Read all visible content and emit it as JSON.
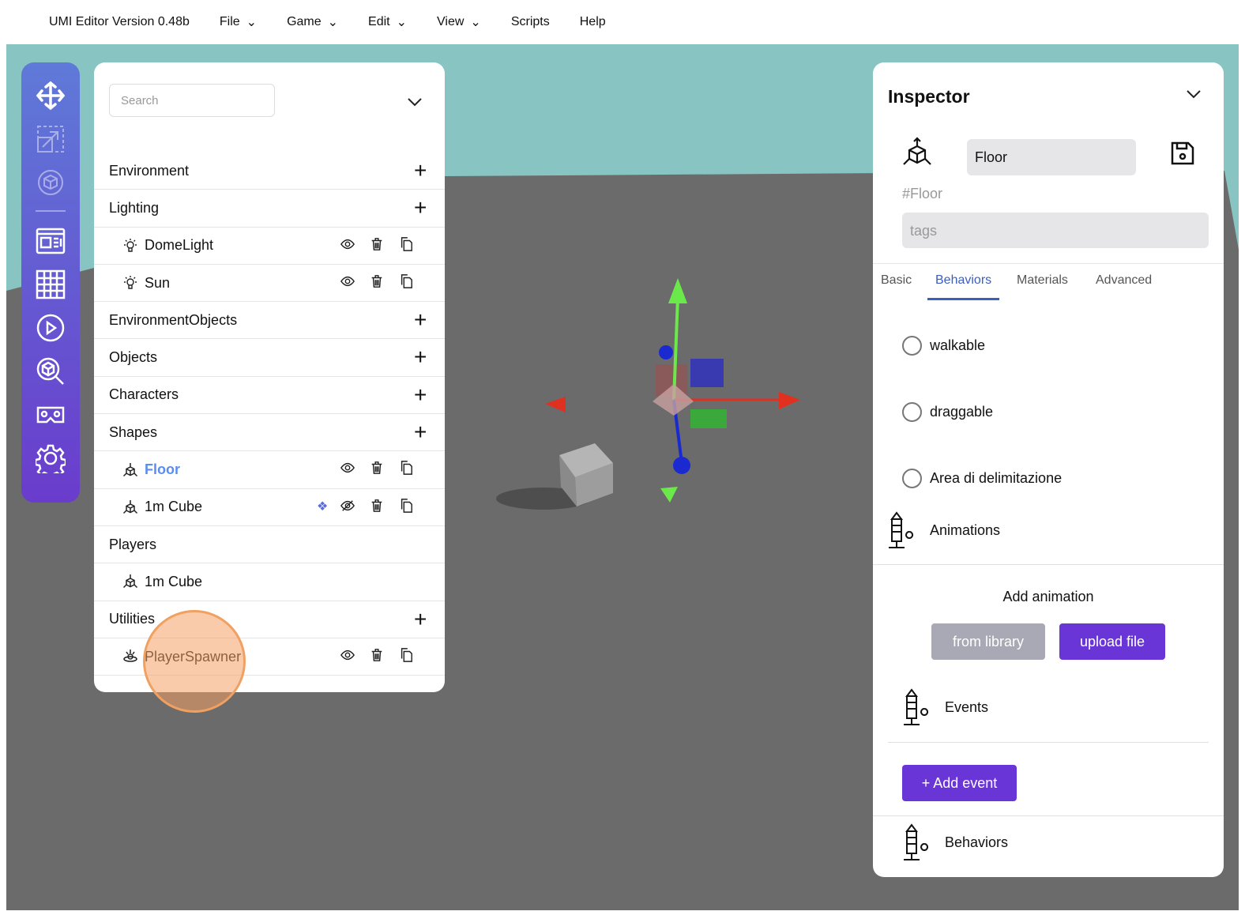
{
  "menu": {
    "title": "UMI Editor Version 0.48b",
    "items": [
      "File",
      "Game",
      "Edit",
      "View",
      "Scripts",
      "Help"
    ]
  },
  "colors": {
    "sky": "#87c4c2",
    "floor": "#6b6b6b",
    "accent": "#6a35d6",
    "active_tab": "#3b5fc0",
    "selected_item": "#5b8def"
  },
  "toolbar": {
    "icons": [
      "move-icon",
      "scale-icon",
      "rotate-icon",
      "layout-icon",
      "grid-icon",
      "play-icon",
      "inspect-object-icon",
      "vr-icon",
      "settings-icon"
    ]
  },
  "hierarchy": {
    "search_placeholder": "Search",
    "rows": [
      {
        "label": "Environment",
        "type": "group"
      },
      {
        "label": "Lighting",
        "type": "group"
      },
      {
        "label": "DomeLight",
        "type": "child",
        "icon": "light-icon"
      },
      {
        "label": "Sun",
        "type": "child",
        "icon": "light-icon"
      },
      {
        "label": "EnvironmentObjects",
        "type": "group"
      },
      {
        "label": "Objects",
        "type": "group"
      },
      {
        "label": "Characters",
        "type": "group"
      },
      {
        "label": "Shapes",
        "type": "group"
      },
      {
        "label": "Floor",
        "type": "child",
        "icon": "object-icon",
        "selected": true
      },
      {
        "label": "1m Cube",
        "type": "child",
        "icon": "object-icon",
        "hidden": true
      },
      {
        "label": "Players",
        "type": "group-noadd"
      },
      {
        "label": "1m Cube",
        "type": "child-noactions",
        "icon": "object-icon"
      },
      {
        "label": "Utilities",
        "type": "group"
      },
      {
        "label": "PlayerSpawner",
        "type": "child",
        "icon": "spawner-icon"
      }
    ]
  },
  "inspector": {
    "title": "Inspector",
    "name": "Floor",
    "id": "#Floor",
    "tags_placeholder": "tags",
    "tabs": [
      "Basic",
      "Behaviors",
      "Materials",
      "Advanced"
    ],
    "active_tab": "Behaviors",
    "toggles": [
      "walkable",
      "draggable",
      "Area di delimitazione"
    ],
    "animations": {
      "label": "Animations",
      "add_label": "Add animation",
      "from_library": "from library",
      "upload_file": "upload file"
    },
    "events": {
      "label": "Events",
      "add_event": "+ Add event"
    },
    "behaviors": {
      "label": "Behaviors"
    }
  }
}
